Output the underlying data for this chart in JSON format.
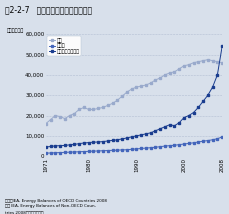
{
  "title": "図2-2-7   ガソリン最終消費量の推移",
  "ylabel": "石油換算トン",
  "years": [
    1971,
    1972,
    1973,
    1974,
    1975,
    1976,
    1977,
    1978,
    1979,
    1980,
    1981,
    1982,
    1983,
    1984,
    1985,
    1986,
    1987,
    1988,
    1989,
    1990,
    1991,
    1992,
    1993,
    1994,
    1995,
    1996,
    1997,
    1998,
    1999,
    2000,
    2001,
    2002,
    2003,
    2004,
    2005,
    2006,
    2007,
    2008
  ],
  "china": [
    4500,
    4800,
    5100,
    5200,
    5300,
    5600,
    5800,
    6200,
    6500,
    6700,
    6900,
    7000,
    7200,
    7500,
    7800,
    8100,
    8500,
    9000,
    9500,
    10000,
    10500,
    11000,
    11500,
    12500,
    13500,
    14500,
    15500,
    15000,
    16500,
    19000,
    20000,
    21500,
    24000,
    27000,
    30000,
    34000,
    40000,
    54000
  ],
  "india": [
    1500,
    1600,
    1700,
    1800,
    1900,
    2000,
    2100,
    2200,
    2300,
    2400,
    2500,
    2600,
    2700,
    2800,
    2900,
    3000,
    3100,
    3200,
    3400,
    3600,
    3800,
    4000,
    4200,
    4400,
    4700,
    5000,
    5200,
    5400,
    5700,
    6000,
    6300,
    6600,
    7000,
    7400,
    7700,
    8100,
    8600,
    9500
  ],
  "japan": [
    16000,
    18000,
    20000,
    19500,
    18500,
    20000,
    21000,
    23000,
    24000,
    23000,
    23000,
    23500,
    24000,
    25000,
    26000,
    27500,
    29500,
    31500,
    33000,
    34000,
    34500,
    35000,
    36000,
    37500,
    38500,
    40000,
    41000,
    41500,
    43000,
    44500,
    45000,
    46000,
    46500,
    47000,
    47500,
    47000,
    46500,
    46000
  ],
  "china_color": "#1a3d8f",
  "india_color": "#4466bb",
  "japan_color": "#99aacc",
  "ylim": [
    0,
    60000
  ],
  "yticks": [
    0,
    10000,
    20000,
    30000,
    40000,
    50000,
    60000
  ],
  "xticks": [
    1971,
    1980,
    1990,
    2000,
    2008
  ],
  "xtick_labels": [
    "1971",
    "1980",
    "1990",
    "2000",
    "2008"
  ],
  "legend_china": "中国（参照左右）",
  "legend_india": "インド",
  "legend_japan": "日本",
  "source_line1": "資料：IEA, Energy Balances of OECD Countries 2008",
  "source_line2": "及び IEA, Energy Balances of Non-OECD Coun-",
  "source_line3": "tries 2008より環境省作成",
  "bg_color": "#d8e0eb",
  "plot_bg_color": "#d8e0eb",
  "grid_color": "#b0bbd0"
}
